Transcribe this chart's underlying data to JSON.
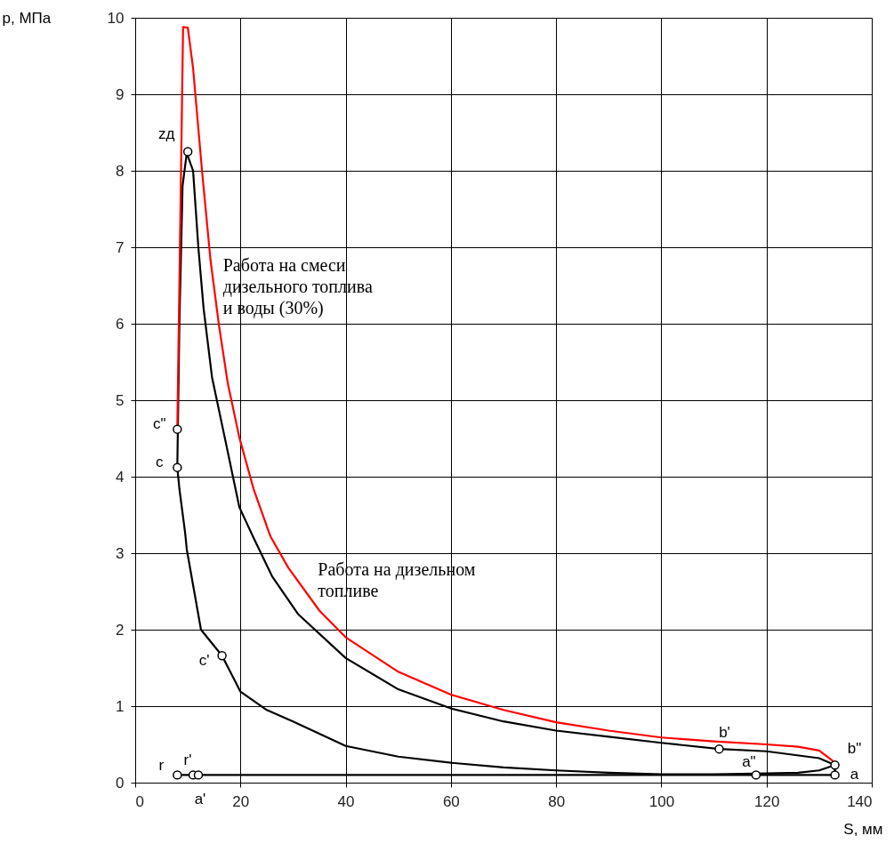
{
  "chart_data": {
    "type": "line",
    "xlabel": "S, мм",
    "ylabel": "p, МПа",
    "xlim": [
      0,
      140
    ],
    "ylim": [
      0,
      10
    ],
    "xticks": [
      0,
      20,
      40,
      60,
      80,
      100,
      120,
      140
    ],
    "yticks": [
      0,
      1,
      2,
      3,
      4,
      5,
      6,
      7,
      8,
      9,
      10
    ],
    "grid": true,
    "marker": "none",
    "line_style": "solid",
    "series": [
      {
        "color": "#000000",
        "x": [
          8,
          8.4,
          9,
          9.8,
          11,
          12,
          13,
          14.6,
          17.3,
          19.8,
          22.5,
          26,
          31,
          40,
          50,
          60,
          70,
          80,
          90,
          100,
          111,
          120,
          130,
          133,
          133,
          120,
          100,
          80,
          60,
          40,
          20,
          12,
          11,
          8
        ],
        "values": [
          4.12,
          6,
          7.8,
          8.23,
          8.0,
          7.0,
          6.2,
          5.3,
          4.42,
          3.6,
          3.2,
          2.7,
          2.2,
          1.63,
          1.22,
          0.97,
          0.8,
          0.68,
          0.6,
          0.52,
          0.44,
          0.41,
          0.32,
          0.23,
          0.1,
          0.1,
          0.1,
          0.1,
          0.1,
          0.1,
          0.1,
          0.1,
          0.1,
          0.1
        ]
      },
      {
        "color": "#000000",
        "x": [
          8,
          8.4,
          9.5,
          9.8,
          12.5,
          16.5,
          20,
          25,
          30,
          40,
          50,
          60,
          70,
          80,
          90,
          100,
          110,
          120,
          126,
          130,
          133
        ],
        "values": [
          4.12,
          3.84,
          3.26,
          3.05,
          2.0,
          1.66,
          1.19,
          0.95,
          0.8,
          0.48,
          0.34,
          0.26,
          0.2,
          0.16,
          0.13,
          0.11,
          0.11,
          0.12,
          0.13,
          0.16,
          0.23
        ]
      },
      {
        "color": "#ff0000",
        "x": [
          8,
          8.5,
          9.1,
          10,
          11,
          12.7,
          14.3,
          15.9,
          17.6,
          19.8,
          22.5,
          25.7,
          29.1,
          35,
          40,
          50,
          60,
          70,
          80,
          90,
          100,
          110,
          120,
          126,
          130,
          132.5,
          133
        ],
        "values": [
          4.62,
          7.0,
          9.88,
          9.87,
          9.34,
          8.0,
          6.84,
          5.99,
          5.22,
          4.51,
          3.84,
          3.22,
          2.81,
          2.25,
          1.9,
          1.45,
          1.15,
          0.95,
          0.79,
          0.68,
          0.59,
          0.54,
          0.5,
          0.47,
          0.42,
          0.29,
          0.22
        ]
      },
      {
        "type": "scatter",
        "color": "#000000",
        "marker": "circle",
        "x": [
          8,
          8,
          10,
          16.5,
          111,
          133,
          133,
          118,
          8,
          11,
          12
        ],
        "values": [
          4.62,
          4.12,
          8.25,
          1.66,
          0.44,
          0.23,
          0.1,
          0.1,
          0.1,
          0.1,
          0.1
        ]
      }
    ],
    "annotations": [
      {
        "text": "c\"",
        "x": 8,
        "y": 4.62
      },
      {
        "text": "c",
        "x": 8,
        "y": 4.12
      },
      {
        "text": "zд",
        "x": 10,
        "y": 8.25
      },
      {
        "text": "c'",
        "x": 16.5,
        "y": 1.66
      },
      {
        "text": "b'",
        "x": 111,
        "y": 0.44
      },
      {
        "text": "b\"",
        "x": 133,
        "y": 0.23
      },
      {
        "text": "a",
        "x": 133,
        "y": 0.1
      },
      {
        "text": "a\"",
        "x": 118,
        "y": 0.1
      },
      {
        "text": "r",
        "x": 8,
        "y": 0.1
      },
      {
        "text": "r'",
        "x": 11,
        "y": 0.1
      },
      {
        "text": "a'",
        "x": 12,
        "y": 0.1
      },
      {
        "text": "Работа на смеси\nдизельного топлива\nи воды (30%)",
        "x": 15,
        "y": 6.8
      },
      {
        "text": "Работа на дизельном\nтопливе",
        "x": 31,
        "y": 2.2
      }
    ]
  }
}
